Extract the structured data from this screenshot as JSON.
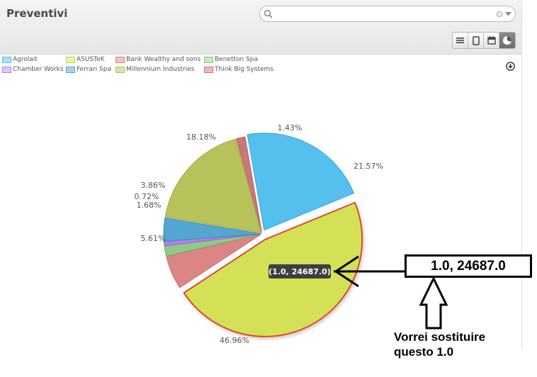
{
  "header": {
    "title": "Preventivi",
    "search_value": "",
    "search_placeholder": "",
    "views": [
      "list-icon",
      "form-icon",
      "calendar-icon",
      "graph-icon"
    ],
    "active_view": "graph-icon"
  },
  "legend": [
    {
      "label": "Agrolait",
      "color": "#55bfee"
    },
    {
      "label": "ASUSTeK",
      "color": "#d4e157"
    },
    {
      "label": "Bank Wealthy and sons",
      "color": "#e08a8a"
    },
    {
      "label": "Benetton Spa",
      "color": "#96c98f"
    },
    {
      "label": "Chamber Works",
      "color": "#c58ef0"
    },
    {
      "label": "Ferrari Spa",
      "color": "#55a9d3"
    },
    {
      "label": "Millennium Industries",
      "color": "#b9c257"
    },
    {
      "label": "Think Big Systems",
      "color": "#cc7b7b"
    }
  ],
  "chart_data": {
    "type": "pie",
    "slices": [
      {
        "name": "Agrolait",
        "percent": 21.57,
        "label": "21.57%",
        "color": "#55bfee",
        "stroke": "#3ea8db"
      },
      {
        "name": "ASUSTeK",
        "percent": 46.96,
        "label": "46.96%",
        "color": "#d4e157",
        "stroke": "#e04a2a",
        "highlighted": true
      },
      {
        "name": "Bank Wealthy and sons",
        "percent": 5.61,
        "label": "5.61%",
        "color": "#db8585",
        "stroke": "#c76f6f"
      },
      {
        "name": "Benetton Spa",
        "percent": 1.68,
        "label": "1.68%",
        "color": "#8fc98a",
        "stroke": "#77b072"
      },
      {
        "name": "Chamber Works",
        "percent": 0.72,
        "label": "0.72%",
        "color": "#b57fe8",
        "stroke": "#9a63cf"
      },
      {
        "name": "Ferrari Spa",
        "percent": 3.86,
        "label": "3.86%",
        "color": "#52a6cf",
        "stroke": "#3f90b8"
      },
      {
        "name": "Millennium Industries",
        "percent": 18.18,
        "label": "18.18%",
        "color": "#b8c25a",
        "stroke": "#a0aa45"
      },
      {
        "name": "Think Big Systems",
        "percent": 1.43,
        "label": "1.43%",
        "color": "#c97878",
        "stroke": "#b46464"
      }
    ],
    "tooltip": "(1.0, 24687.0)"
  },
  "annotation": {
    "box_text": "1.0, 24687.0",
    "note_line1": "Vorrei sostituire",
    "note_line2": "questo 1.0"
  }
}
